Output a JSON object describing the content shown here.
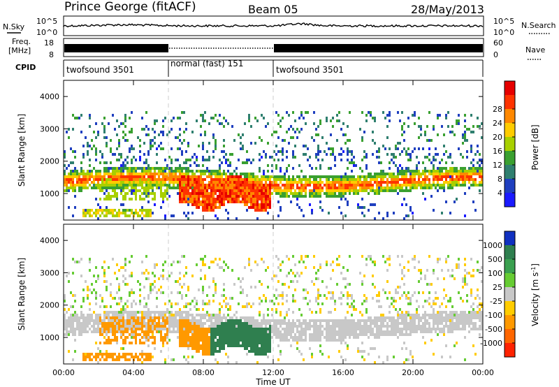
{
  "header": {
    "station": "Prince George (fitACF)",
    "beam": "Beam 05",
    "date": "28/May/2013"
  },
  "status_panels": {
    "nsky_label": "N.Sky",
    "nsearch_label": "N.Search",
    "noise_ticks": [
      "10^5",
      "10^0"
    ],
    "freq_label": "Freq.",
    "freq_unit": "[MHz]",
    "freq_ticks": [
      "18",
      "8"
    ],
    "nave_label": "Nave",
    "nave_ticks": [
      "60",
      "0"
    ],
    "cpid_label": "CPID",
    "cpid_segments": [
      {
        "label": "twofsound 3501",
        "start_hour": 0,
        "end_hour": 6
      },
      {
        "label": "normal (fast) 151",
        "start_hour": 6,
        "end_hour": 12
      },
      {
        "label": "twofsound 3501",
        "start_hour": 12,
        "end_hour": 24
      }
    ]
  },
  "chart_data": [
    {
      "type": "heatmap",
      "title": "",
      "ylabel": "Slant Range [km]",
      "xlabel": "",
      "xlim": [
        0,
        24
      ],
      "ylim": [
        180,
        4500
      ],
      "yticks": [
        1000,
        2000,
        3000,
        4000
      ],
      "colorbar": {
        "label": "Power [dB]",
        "ticks": [
          "4",
          "8",
          "12",
          "16",
          "20",
          "24",
          "28"
        ],
        "colors": [
          "#1a1aff",
          "#1f3fbf",
          "#2f7f6f",
          "#3aa030",
          "#a8d000",
          "#ffcc00",
          "#ff8800",
          "#ff3300",
          "#e60000"
        ]
      },
      "features": [
        {
          "name": "main band",
          "t_start": 0,
          "t_end": 24,
          "range_km": 1400,
          "value_db": 22
        },
        {
          "name": "strong echoes",
          "t_start": 6.5,
          "t_end": 11.8,
          "range_km": 1100,
          "value_db": 28
        },
        {
          "name": "near range band",
          "t_start": 1,
          "t_end": 5,
          "range_km": 450,
          "value_db": 14
        }
      ]
    },
    {
      "type": "heatmap",
      "title": "",
      "ylabel": "Slant Range [km]",
      "xlabel": "Time UT",
      "xlim": [
        0,
        24
      ],
      "ylim": [
        180,
        4500
      ],
      "yticks": [
        1000,
        2000,
        3000,
        4000
      ],
      "xticks": [
        "00:00",
        "04:00",
        "08:00",
        "12:00",
        "16:00",
        "20:00",
        "00:00"
      ],
      "colorbar": {
        "label": "Velocity [m s^-1]",
        "ticks": [
          "1000",
          "500",
          "100",
          "25",
          "-25",
          "-100",
          "-500",
          "-1000"
        ],
        "colors": [
          "#1030c0",
          "#2f7f4f",
          "#3aa050",
          "#66cc33",
          "#c8c8c8",
          "#ffcc00",
          "#ff9900",
          "#ff6600",
          "#ff2200"
        ]
      },
      "features": [
        {
          "name": "ground scatter",
          "t_start": 0,
          "t_end": 24,
          "range_km": 1400,
          "velocity": 0
        },
        {
          "name": "westward flow",
          "t_start": 2,
          "t_end": 8,
          "range_km": 1200,
          "velocity": -300
        },
        {
          "name": "eastward flow",
          "t_start": 8.3,
          "t_end": 11.8,
          "range_km": 1100,
          "velocity": 300
        }
      ]
    }
  ]
}
